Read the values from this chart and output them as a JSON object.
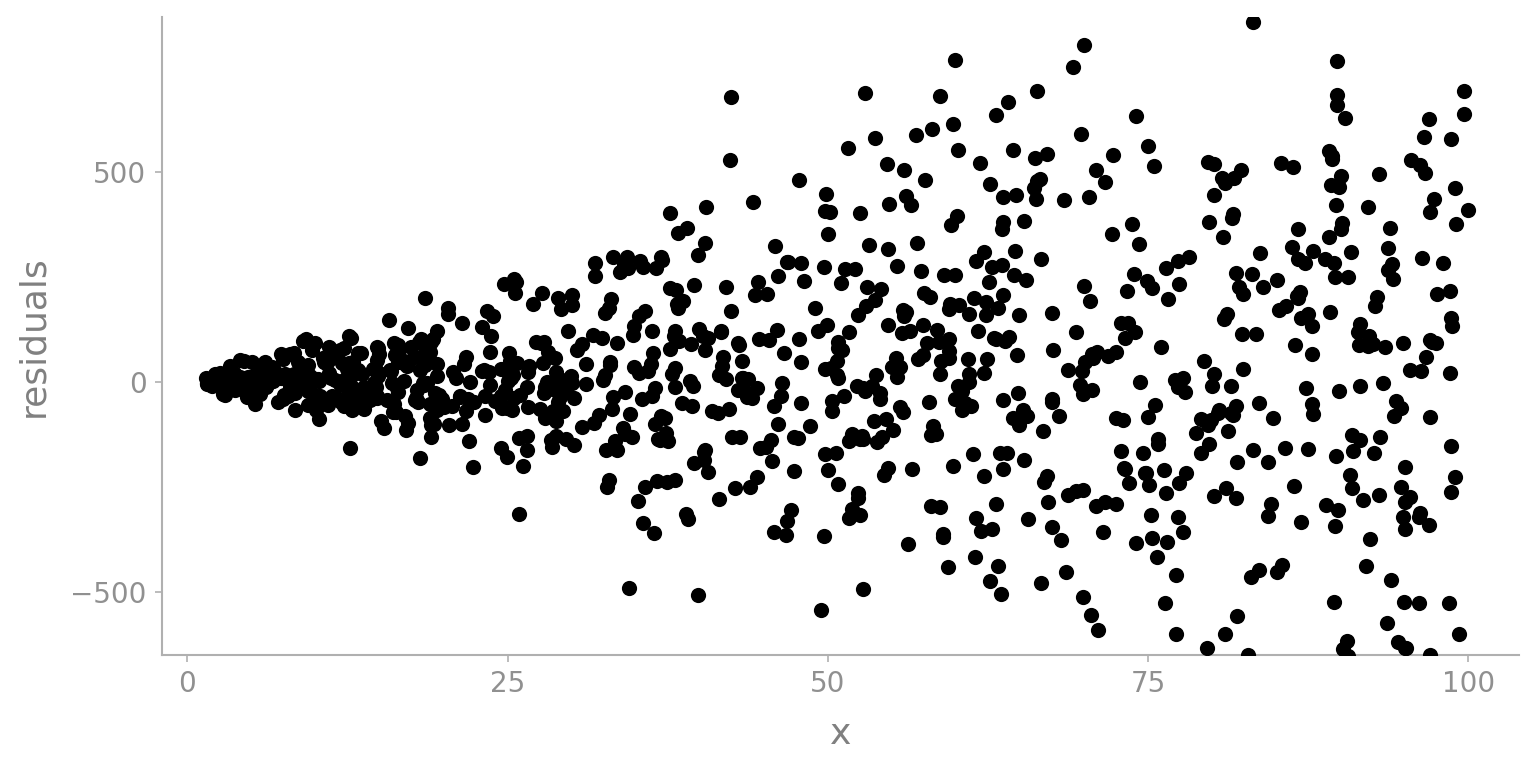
{
  "seed": 42,
  "n_points": 1000,
  "x_min": 1,
  "x_max": 100,
  "noise_scale": 5.0,
  "xlabel": "x",
  "ylabel": "residuals",
  "xlim": [
    -2,
    104
  ],
  "ylim": [
    -650,
    870
  ],
  "xticks": [
    0,
    25,
    50,
    75,
    100
  ],
  "yticks": [
    -500,
    0,
    500
  ],
  "dot_color": "#000000",
  "dot_size": 120,
  "dot_alpha": 1.0,
  "background_color": "#ffffff",
  "axis_color": "#b0b0b0",
  "tick_label_color": "#909090",
  "label_color": "#808080",
  "label_fontsize": 26,
  "tick_fontsize": 20
}
